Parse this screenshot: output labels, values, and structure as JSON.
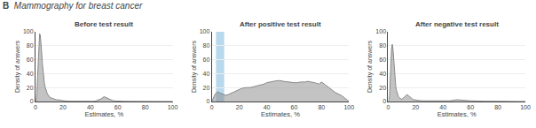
{
  "title": "Mammography for breast cancer",
  "annotations": [
    "B"
  ],
  "chart_data": [
    {
      "type": "area",
      "title": "Before test result",
      "x_label": "Estimates, %",
      "y_label": "Density of answers",
      "x": [
        0,
        0.3,
        0.6,
        1,
        1.5,
        2,
        2.5,
        3,
        3.5,
        4,
        4.5,
        5,
        5.5,
        6,
        6.5,
        7,
        7.5,
        8,
        8.5,
        9,
        9.5,
        10,
        10.5,
        11,
        12,
        13,
        14,
        15,
        16,
        17,
        18,
        19,
        20,
        22,
        25,
        30,
        35,
        40,
        42,
        44,
        46,
        48,
        50,
        52,
        54,
        56,
        58,
        60,
        65,
        70,
        80,
        90,
        100
      ],
      "values": [
        0,
        1,
        4,
        12,
        35,
        65,
        88,
        97,
        95,
        85,
        70,
        55,
        42,
        32,
        26,
        21,
        17,
        14,
        12,
        10,
        8,
        7,
        6,
        5.5,
        4.5,
        3.5,
        3,
        2.5,
        2.5,
        2.5,
        2,
        1.5,
        1,
        0.8,
        0.5,
        0.3,
        0.2,
        0.2,
        0.3,
        0.8,
        2,
        4,
        7,
        5,
        3,
        1.5,
        0.8,
        0.5,
        0.3,
        0.2,
        0.1,
        0.1,
        0
      ],
      "color": "#888888",
      "xlim": [
        0,
        100
      ],
      "ylim": [
        0,
        100
      ],
      "xticks": [
        0,
        20,
        40,
        60,
        80,
        100
      ],
      "yticks": [
        0,
        20,
        40,
        60,
        80,
        100
      ],
      "grid": "y"
    },
    {
      "type": "area",
      "title": "After positive test result",
      "x_label": "Estimates, %",
      "y_label": "Density of answers",
      "x": [
        0,
        1,
        2,
        3,
        4,
        5,
        6,
        7,
        8,
        9,
        10,
        12,
        14,
        16,
        18,
        20,
        22,
        25,
        28,
        30,
        32,
        35,
        38,
        40,
        42,
        45,
        48,
        50,
        52,
        55,
        58,
        60,
        62,
        65,
        68,
        70,
        72,
        75,
        78,
        80,
        82,
        85,
        88,
        90,
        95,
        100
      ],
      "values": [
        0,
        5,
        9,
        12,
        14,
        13,
        12,
        11,
        10,
        9,
        9,
        10,
        12,
        14,
        16,
        18,
        19,
        20,
        20,
        21,
        22,
        23,
        25,
        27,
        28,
        29,
        30,
        30,
        29,
        28,
        27,
        27,
        27,
        28,
        28,
        29,
        28,
        27,
        25,
        28,
        25,
        20,
        16,
        13,
        8,
        0
      ],
      "color": "#888888",
      "bands": [
        {
          "x": [
            3,
            9
          ],
          "color": "#b8d9ed"
        }
      ],
      "xlim": [
        0,
        100
      ],
      "ylim": [
        0,
        100
      ],
      "xticks": [
        0,
        20,
        40,
        60,
        80,
        100
      ],
      "yticks": [
        0,
        20,
        40,
        60,
        80,
        100
      ],
      "grid": "y"
    },
    {
      "type": "area",
      "title": "After negative test result",
      "x_label": "Estimates, %",
      "y_label": "Density of answers",
      "x": [
        0,
        0.3,
        0.6,
        1,
        1.5,
        2,
        2.5,
        3,
        3.5,
        4,
        4.5,
        5,
        5.5,
        6,
        6.5,
        7,
        7.5,
        8,
        8.5,
        9,
        9.5,
        10,
        10.5,
        11,
        12,
        13,
        14,
        15,
        16,
        17,
        18,
        19,
        20,
        22,
        25,
        30,
        35,
        40,
        45,
        50,
        55,
        60,
        70,
        80,
        100
      ],
      "values": [
        0,
        1,
        3,
        8,
        25,
        55,
        78,
        82,
        75,
        60,
        42,
        30,
        22,
        16,
        12,
        9,
        7,
        5.5,
        4.5,
        4,
        3.5,
        3.5,
        4,
        5,
        7,
        9,
        10,
        8,
        6,
        4,
        3,
        2.5,
        2,
        1.5,
        1,
        0.8,
        0.8,
        0.8,
        1,
        2.5,
        1.5,
        1,
        0.5,
        0.2,
        0
      ],
      "color": "#888888",
      "xlim": [
        0,
        100
      ],
      "ylim": [
        0,
        100
      ],
      "xticks": [
        0,
        20,
        40,
        60,
        80,
        100
      ],
      "yticks": [
        0,
        20,
        40,
        60,
        80,
        100
      ],
      "grid": "y"
    }
  ]
}
